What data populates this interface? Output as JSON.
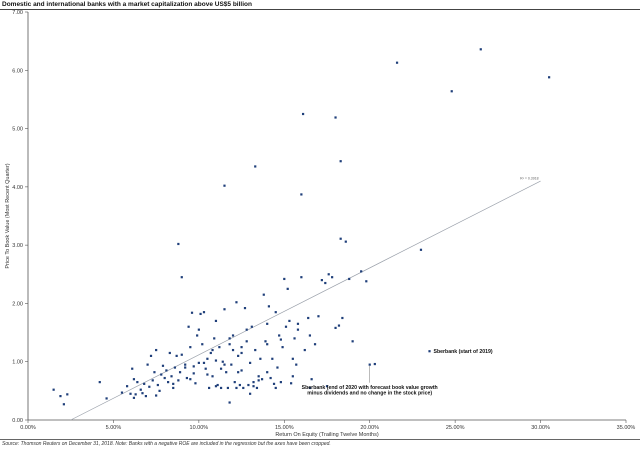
{
  "header": {
    "title": "Domestic and international banks with a market capitalization above US$5 billion"
  },
  "footer": {
    "source": "Source: Thomson Reuters on December 31, 2018. Note: Banks with a negative ROE are included in the regression but the axes have been cropped."
  },
  "colors": {
    "point": "#1f3f7a",
    "trendline": "#9aa0aa",
    "axis": "#555555",
    "text": "#222222"
  },
  "chart_data": {
    "type": "scatter",
    "title": "Domestic and international banks with a market capitalization above US$5 billion",
    "xlabel": "Return On Equity (Trailing Twelve Months)",
    "ylabel": "Price To Book Value (Most Recent Quarter)",
    "xlim": [
      0,
      0.35
    ],
    "ylim": [
      0,
      7
    ],
    "x_ticks": [
      0,
      0.05,
      0.1,
      0.15,
      0.2,
      0.25,
      0.3,
      0.35
    ],
    "x_tick_labels": [
      "0.00%",
      "5.00%",
      "10.00%",
      "15.00%",
      "20.00%",
      "25.00%",
      "30.00%",
      "35.00%"
    ],
    "y_ticks": [
      0,
      1,
      2,
      3,
      4,
      5,
      6,
      7
    ],
    "y_tick_labels": [
      "0.00",
      "1.00",
      "2.00",
      "3.00",
      "4.00",
      "5.00",
      "6.00",
      "7.00"
    ],
    "grid": false,
    "legend": "none",
    "trendline": {
      "x": [
        0.025,
        0.3
      ],
      "y": [
        0.0,
        4.1
      ],
      "label": "R² = 0.3918"
    },
    "annotations": [
      {
        "text": "Sberbank (start of 2019)",
        "x": 0.235,
        "y": 1.18
      },
      {
        "text": "Sberbank (end of 2020 with forecast book value growth",
        "x": 0.2,
        "y": 0.57
      },
      {
        "text": "minus dividends and no change in the stock price)",
        "x": 0.2,
        "y": 0.47
      }
    ],
    "points": [
      [
        0.015,
        0.52
      ],
      [
        0.019,
        0.41
      ],
      [
        0.021,
        0.27
      ],
      [
        0.023,
        0.44
      ],
      [
        0.042,
        0.65
      ],
      [
        0.046,
        0.37
      ],
      [
        0.055,
        0.47
      ],
      [
        0.058,
        0.58
      ],
      [
        0.061,
        0.88
      ],
      [
        0.062,
        0.7
      ],
      [
        0.063,
        0.44
      ],
      [
        0.064,
        0.65
      ],
      [
        0.066,
        0.52
      ],
      [
        0.067,
        0.46
      ],
      [
        0.069,
        0.41
      ],
      [
        0.07,
        0.95
      ],
      [
        0.071,
        0.57
      ],
      [
        0.072,
        1.1
      ],
      [
        0.073,
        0.68
      ],
      [
        0.074,
        0.82
      ],
      [
        0.075,
        1.2
      ],
      [
        0.076,
        0.6
      ],
      [
        0.077,
        0.5
      ],
      [
        0.078,
        0.78
      ],
      [
        0.079,
        0.93
      ],
      [
        0.08,
        0.72
      ],
      [
        0.081,
        0.85
      ],
      [
        0.082,
        0.65
      ],
      [
        0.083,
        1.15
      ],
      [
        0.084,
        0.75
      ],
      [
        0.085,
        0.62
      ],
      [
        0.086,
        0.9
      ],
      [
        0.087,
        1.1
      ],
      [
        0.088,
        0.68
      ],
      [
        0.089,
        0.82
      ],
      [
        0.09,
        1.12
      ],
      [
        0.088,
        3.02
      ],
      [
        0.09,
        2.45
      ],
      [
        0.092,
        0.95
      ],
      [
        0.093,
        0.72
      ],
      [
        0.094,
        1.6
      ],
      [
        0.095,
        1.25
      ],
      [
        0.096,
        1.84
      ],
      [
        0.097,
        0.92
      ],
      [
        0.098,
        0.63
      ],
      [
        0.099,
        1.45
      ],
      [
        0.1,
        0.98
      ],
      [
        0.101,
        1.82
      ],
      [
        0.102,
        1.3
      ],
      [
        0.103,
        1.85
      ],
      [
        0.104,
        0.88
      ],
      [
        0.105,
        1.05
      ],
      [
        0.106,
        0.55
      ],
      [
        0.107,
        1.15
      ],
      [
        0.108,
        0.75
      ],
      [
        0.109,
        1.4
      ],
      [
        0.11,
        1.02
      ],
      [
        0.111,
        0.6
      ],
      [
        0.112,
        1.25
      ],
      [
        0.113,
        0.55
      ],
      [
        0.114,
        1.0
      ],
      [
        0.115,
        1.9
      ],
      [
        0.116,
        0.82
      ],
      [
        0.117,
        0.55
      ],
      [
        0.118,
        1.3
      ],
      [
        0.119,
        0.95
      ],
      [
        0.12,
        1.2
      ],
      [
        0.121,
        0.65
      ],
      [
        0.122,
        2.02
      ],
      [
        0.123,
        1.1
      ],
      [
        0.124,
        0.6
      ],
      [
        0.125,
        1.25
      ],
      [
        0.126,
        0.55
      ],
      [
        0.127,
        1.92
      ],
      [
        0.128,
        1.35
      ],
      [
        0.129,
        0.6
      ],
      [
        0.13,
        0.98
      ],
      [
        0.131,
        1.6
      ],
      [
        0.132,
        0.65
      ],
      [
        0.133,
        1.2
      ],
      [
        0.134,
        0.55
      ],
      [
        0.135,
        0.75
      ],
      [
        0.136,
        1.05
      ],
      [
        0.137,
        0.7
      ],
      [
        0.138,
        2.15
      ],
      [
        0.139,
        1.35
      ],
      [
        0.14,
        1.3
      ],
      [
        0.141,
        1.95
      ],
      [
        0.142,
        0.72
      ],
      [
        0.143,
        1.05
      ],
      [
        0.144,
        0.62
      ],
      [
        0.145,
        1.85
      ],
      [
        0.146,
        0.9
      ],
      [
        0.147,
        1.45
      ],
      [
        0.148,
        0.65
      ],
      [
        0.149,
        1.25
      ],
      [
        0.15,
        2.42
      ],
      [
        0.151,
        1.6
      ],
      [
        0.152,
        2.25
      ],
      [
        0.153,
        1.7
      ],
      [
        0.154,
        0.63
      ],
      [
        0.155,
        1.05
      ],
      [
        0.156,
        1.4
      ],
      [
        0.157,
        0.95
      ],
      [
        0.158,
        1.65
      ],
      [
        0.16,
        2.45
      ],
      [
        0.162,
        1.2
      ],
      [
        0.164,
        1.75
      ],
      [
        0.166,
        0.7
      ],
      [
        0.168,
        1.3
      ],
      [
        0.17,
        1.78
      ],
      [
        0.172,
        2.4
      ],
      [
        0.174,
        2.35
      ],
      [
        0.176,
        2.5
      ],
      [
        0.178,
        2.45
      ],
      [
        0.18,
        1.58
      ],
      [
        0.182,
        1.62
      ],
      [
        0.184,
        1.75
      ],
      [
        0.186,
        3.06
      ],
      [
        0.188,
        2.42
      ],
      [
        0.19,
        1.35
      ],
      [
        0.195,
        2.55
      ],
      [
        0.198,
        2.38
      ],
      [
        0.115,
        4.02
      ],
      [
        0.133,
        4.35
      ],
      [
        0.16,
        3.87
      ],
      [
        0.161,
        5.25
      ],
      [
        0.18,
        5.19
      ],
      [
        0.183,
        4.44
      ],
      [
        0.183,
        3.11
      ],
      [
        0.216,
        6.13
      ],
      [
        0.23,
        2.92
      ],
      [
        0.248,
        5.64
      ],
      [
        0.265,
        6.36
      ],
      [
        0.305,
        5.88
      ],
      [
        0.235,
        1.18
      ],
      [
        0.2,
        0.95
      ],
      [
        0.203,
        0.96
      ],
      [
        0.095,
        0.7
      ],
      [
        0.105,
        0.78
      ],
      [
        0.115,
        0.95
      ],
      [
        0.125,
        0.85
      ],
      [
        0.135,
        0.68
      ],
      [
        0.145,
        0.55
      ],
      [
        0.155,
        0.75
      ],
      [
        0.165,
        0.55
      ],
      [
        0.175,
        0.58
      ],
      [
        0.1,
        1.55
      ],
      [
        0.11,
        1.7
      ],
      [
        0.12,
        1.45
      ],
      [
        0.128,
        1.55
      ],
      [
        0.14,
        1.65
      ],
      [
        0.148,
        1.38
      ],
      [
        0.158,
        1.55
      ],
      [
        0.165,
        1.45
      ],
      [
        0.108,
        1.2
      ],
      [
        0.118,
        1.4
      ],
      [
        0.125,
        1.15
      ],
      [
        0.092,
        0.9
      ],
      [
        0.097,
        0.8
      ],
      [
        0.103,
        0.98
      ],
      [
        0.113,
        0.88
      ],
      [
        0.123,
        0.82
      ],
      [
        0.13,
        0.45
      ],
      [
        0.118,
        0.3
      ],
      [
        0.11,
        0.58
      ],
      [
        0.122,
        0.55
      ],
      [
        0.132,
        0.58
      ],
      [
        0.085,
        0.55
      ],
      [
        0.075,
        0.42
      ],
      [
        0.06,
        0.45
      ],
      [
        0.068,
        0.62
      ],
      [
        0.062,
        0.38
      ],
      [
        0.14,
        0.82
      ]
    ]
  }
}
